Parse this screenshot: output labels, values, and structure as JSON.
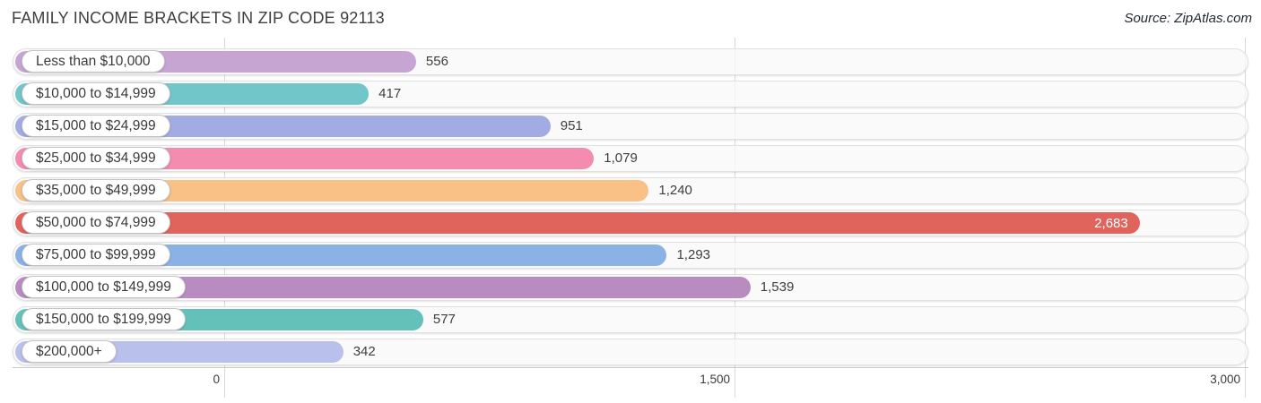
{
  "header": {
    "title": "FAMILY INCOME BRACKETS IN ZIP CODE 92113",
    "source": "Source: ZipAtlas.com"
  },
  "chart_data": {
    "type": "bar",
    "orientation": "horizontal",
    "title": "FAMILY INCOME BRACKETS IN ZIP CODE 92113",
    "xlabel": "",
    "ylabel": "",
    "xlim": [
      0,
      3000
    ],
    "grid": true,
    "legend": "none",
    "categories": [
      "Less than $10,000",
      "$10,000 to $14,999",
      "$15,000 to $24,999",
      "$25,000 to $34,999",
      "$35,000 to $49,999",
      "$50,000 to $74,999",
      "$75,000 to $99,999",
      "$100,000 to $149,999",
      "$150,000 to $199,999",
      "$200,000+"
    ],
    "values": [
      556,
      417,
      951,
      1079,
      1240,
      2683,
      1293,
      1539,
      577,
      342
    ],
    "value_labels": [
      "556",
      "417",
      "951",
      "1,079",
      "1,240",
      "2,683",
      "1,293",
      "1,539",
      "577",
      "342"
    ],
    "value_label_inside": [
      false,
      false,
      false,
      false,
      false,
      true,
      false,
      false,
      false,
      false
    ],
    "bar_colors": [
      "#c6a5d3",
      "#70c6c8",
      "#a3abe3",
      "#f48cb0",
      "#f9c186",
      "#e0645c",
      "#8ab2e4",
      "#b88cc0",
      "#63c1ba",
      "#bac0ec"
    ],
    "x_ticks": [
      {
        "value": 0,
        "label": "0"
      },
      {
        "value": 1500,
        "label": "1,500"
      },
      {
        "value": 3000,
        "label": "3,000"
      }
    ]
  },
  "colors": {
    "track_bg": "#f8f8f8",
    "track_border": "#e1e1e1",
    "grid_line": "#d9d9d9",
    "axis_line": "#cccccc",
    "title_text": "#3f3f3f",
    "source_text": "#232933",
    "label_text": "#3a3a3a",
    "value_text": "#3e3e3e",
    "inside_value_text": "#ffffff",
    "tick_text": "#3a3a3a"
  }
}
